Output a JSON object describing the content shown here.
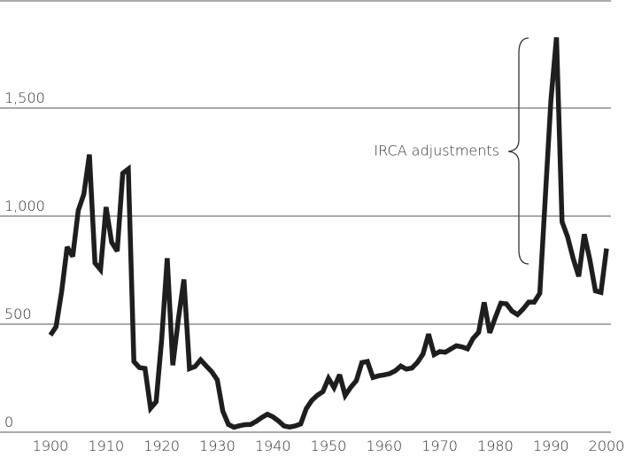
{
  "chart_data": {
    "type": "line",
    "annotation": "IRCA adjustments",
    "x": [
      1900,
      1901,
      1902,
      1903,
      1904,
      1905,
      1906,
      1907,
      1908,
      1909,
      1910,
      1911,
      1912,
      1913,
      1914,
      1915,
      1916,
      1917,
      1918,
      1919,
      1920,
      1921,
      1922,
      1923,
      1924,
      1925,
      1926,
      1927,
      1928,
      1929,
      1930,
      1931,
      1932,
      1933,
      1934,
      1935,
      1936,
      1937,
      1938,
      1939,
      1940,
      1941,
      1942,
      1943,
      1944,
      1945,
      1946,
      1947,
      1948,
      1949,
      1950,
      1951,
      1952,
      1953,
      1954,
      1955,
      1956,
      1957,
      1958,
      1959,
      1960,
      1961,
      1962,
      1963,
      1964,
      1965,
      1966,
      1967,
      1968,
      1969,
      1970,
      1971,
      1972,
      1973,
      1974,
      1975,
      1976,
      1977,
      1978,
      1979,
      1980,
      1981,
      1982,
      1983,
      1984,
      1985,
      1986,
      1987,
      1988,
      1989,
      1990,
      1991,
      1992,
      1993,
      1994,
      1995,
      1996,
      1997,
      1998,
      1999,
      2000
    ],
    "series": [
      {
        "color": "#1e1e1e",
        "values": [
          449,
          488,
          649,
          857,
          813,
          1026,
          1101,
          1285,
          783,
          752,
          1042,
          879,
          838,
          1198,
          1218,
          327,
          299,
          295,
          111,
          141,
          430,
          805,
          310,
          523,
          707,
          294,
          304,
          335,
          307,
          280,
          242,
          97,
          36,
          23,
          30,
          35,
          36,
          50,
          68,
          83,
          71,
          52,
          29,
          24,
          29,
          38,
          109,
          147,
          171,
          188,
          249,
          206,
          266,
          170,
          208,
          238,
          322,
          327,
          253,
          261,
          265,
          271,
          284,
          306,
          292,
          297,
          323,
          362,
          454,
          359,
          373,
          370,
          385,
          400,
          395,
          386,
          434,
          462,
          601,
          460,
          531,
          597,
          594,
          560,
          544,
          570,
          602,
          602,
          643,
          1091,
          1536,
          1827,
          974,
          904,
          804,
          721,
          916,
          798,
          654,
          647,
          850
        ]
      }
    ],
    "xlim": [
      1900,
      2000
    ],
    "xticks": [
      1900,
      1910,
      1920,
      1930,
      1940,
      1950,
      1960,
      1970,
      1980,
      1990,
      2000
    ],
    "ylim": [
      0,
      2000
    ],
    "yticks": [
      0,
      500,
      {
        "value": 1000,
        "label": "1,000"
      },
      {
        "value": 1500,
        "label": "1,500"
      }
    ],
    "grid": true
  }
}
